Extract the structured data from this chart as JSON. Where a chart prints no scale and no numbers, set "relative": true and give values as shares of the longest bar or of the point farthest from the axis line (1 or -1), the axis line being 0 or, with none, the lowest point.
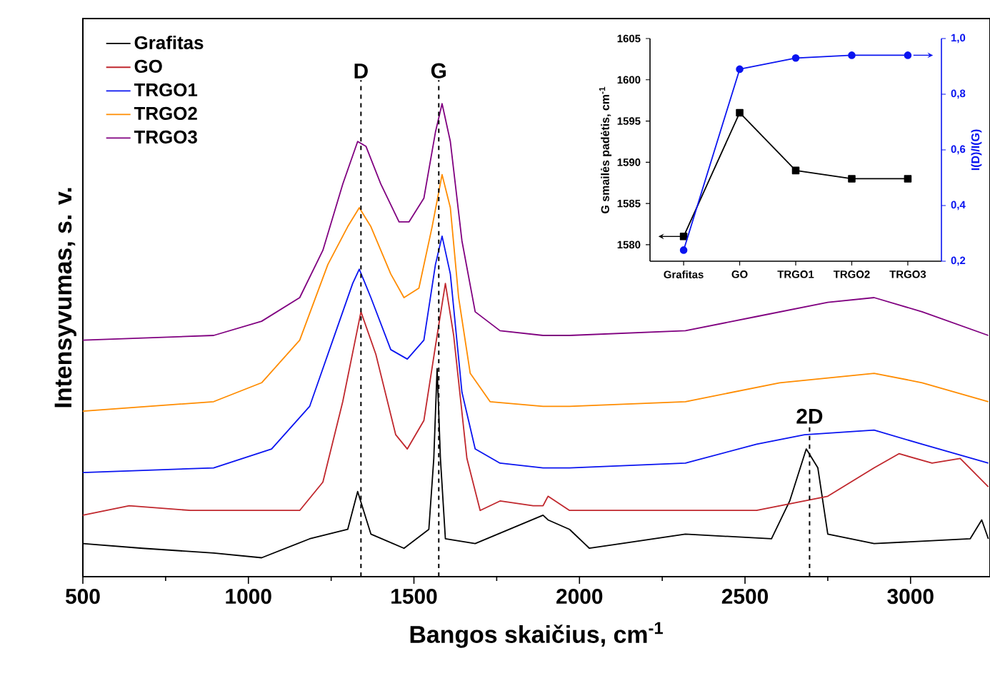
{
  "chart_data": [
    {
      "type": "line",
      "relative": true,
      "xlabel": "Bangos skaičius, cm$^{-1}$",
      "ylabel": "Intensyvumas, s. v.",
      "xlim": [
        500,
        3240
      ],
      "xticks": [
        500,
        1000,
        1500,
        2000,
        2500,
        3000
      ],
      "legend": "top left",
      "ref_lines": [
        {
          "axis": "x",
          "value": 1340,
          "label": "D",
          "color": "#000000",
          "line_style": "dashed"
        },
        {
          "axis": "x",
          "value": 1575,
          "label": "G",
          "color": "#000000",
          "line_style": "dashed"
        },
        {
          "axis": "x",
          "value": 2695,
          "label": "2D",
          "color": "#000000",
          "line_style": "dashed"
        }
      ],
      "series": [
        {
          "name": "Grafitas",
          "color": "#000000",
          "x": [
            500,
            680,
            895,
            1040,
            1185,
            1300,
            1330,
            1370,
            1470,
            1545,
            1560,
            1570,
            1580,
            1595,
            1685,
            1890,
            1905,
            1970,
            2030,
            2320,
            2580,
            2635,
            2685,
            2720,
            2750,
            2890,
            3180,
            3215,
            3235
          ],
          "values": [
            0.07,
            0.06,
            0.05,
            0.04,
            0.08,
            0.1,
            0.18,
            0.09,
            0.06,
            0.1,
            0.25,
            0.44,
            0.25,
            0.08,
            0.07,
            0.13,
            0.12,
            0.1,
            0.06,
            0.09,
            0.08,
            0.16,
            0.27,
            0.23,
            0.09,
            0.07,
            0.08,
            0.12,
            0.08
          ]
        },
        {
          "name": "GO",
          "color": "#c0272d",
          "x": [
            500,
            640,
            825,
            1155,
            1225,
            1285,
            1340,
            1385,
            1445,
            1480,
            1530,
            1570,
            1595,
            1620,
            1660,
            1700,
            1760,
            1860,
            1890,
            1905,
            1970,
            2245,
            2535,
            2750,
            2890,
            2965,
            3065,
            3150,
            3235
          ],
          "values": [
            0.13,
            0.15,
            0.14,
            0.14,
            0.2,
            0.37,
            0.56,
            0.47,
            0.3,
            0.27,
            0.33,
            0.51,
            0.62,
            0.51,
            0.25,
            0.14,
            0.16,
            0.15,
            0.15,
            0.17,
            0.14,
            0.14,
            0.14,
            0.17,
            0.23,
            0.26,
            0.24,
            0.25,
            0.19
          ]
        },
        {
          "name": "TRGO1",
          "color": "#0a14f0",
          "x": [
            500,
            895,
            1070,
            1185,
            1255,
            1315,
            1335,
            1370,
            1430,
            1480,
            1530,
            1565,
            1585,
            1610,
            1645,
            1685,
            1760,
            1890,
            1970,
            2320,
            2535,
            2680,
            2890,
            3035,
            3235
          ],
          "values": [
            0.22,
            0.23,
            0.27,
            0.36,
            0.5,
            0.62,
            0.65,
            0.59,
            0.48,
            0.46,
            0.5,
            0.66,
            0.72,
            0.64,
            0.39,
            0.27,
            0.24,
            0.23,
            0.23,
            0.24,
            0.28,
            0.3,
            0.31,
            0.28,
            0.24
          ]
        },
        {
          "name": "TRGO2",
          "color": "#ff8c00",
          "x": [
            500,
            895,
            1040,
            1155,
            1240,
            1300,
            1335,
            1370,
            1430,
            1470,
            1515,
            1555,
            1585,
            1610,
            1635,
            1670,
            1730,
            1890,
            1970,
            2320,
            2605,
            2890,
            3035,
            3235
          ],
          "values": [
            0.35,
            0.37,
            0.41,
            0.5,
            0.66,
            0.74,
            0.78,
            0.74,
            0.64,
            0.59,
            0.61,
            0.74,
            0.85,
            0.78,
            0.59,
            0.43,
            0.37,
            0.36,
            0.36,
            0.37,
            0.41,
            0.43,
            0.41,
            0.37
          ]
        },
        {
          "name": "TRGO3",
          "color": "#800080",
          "x": [
            500,
            895,
            1040,
            1155,
            1225,
            1285,
            1330,
            1355,
            1400,
            1455,
            1485,
            1530,
            1565,
            1585,
            1610,
            1645,
            1685,
            1760,
            1890,
            1970,
            2320,
            2535,
            2750,
            2890,
            3035,
            3235
          ],
          "values": [
            0.5,
            0.51,
            0.54,
            0.59,
            0.69,
            0.83,
            0.92,
            0.91,
            0.83,
            0.75,
            0.75,
            0.8,
            0.94,
            1.0,
            0.92,
            0.71,
            0.56,
            0.52,
            0.51,
            0.51,
            0.52,
            0.55,
            0.58,
            0.59,
            0.56,
            0.51
          ]
        }
      ]
    },
    {
      "type": "line",
      "categories": [
        "Grafitas",
        "GO",
        "TRGO1",
        "TRGO2",
        "TRGO3"
      ],
      "ylabel": "G smailės padėtis, cm$^{-1}$",
      "y2label": "I(D)/I(G)",
      "ylim": [
        1578,
        1605
      ],
      "yticks": [
        1580,
        1585,
        1590,
        1595,
        1600,
        1605
      ],
      "y2lim": [
        0.2,
        1.0
      ],
      "y2ticks": [
        {
          "value": 0.2,
          "label": "0,2"
        },
        {
          "value": 0.4,
          "label": "0,4"
        },
        {
          "value": 0.6,
          "label": "0,6"
        },
        {
          "value": 0.8,
          "label": "0,8"
        },
        {
          "value": 1.0,
          "label": "1,0"
        }
      ],
      "series": [
        {
          "color": "#000000",
          "marker": "square",
          "values": [
            1581,
            1596,
            1589,
            1588,
            1588
          ]
        },
        {
          "color": "#0a14f0",
          "marker": "circle",
          "axis": "y2",
          "values": [
            0.24,
            0.89,
            0.93,
            0.94,
            0.94
          ]
        }
      ]
    }
  ]
}
